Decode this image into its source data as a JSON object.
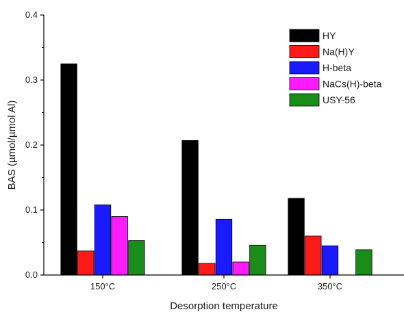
{
  "chart_data": {
    "type": "bar",
    "xlabel": "Desorption temperature",
    "ylabel": "BAS (µmol/µmol Al)",
    "categories": [
      "150°C",
      "250°C",
      "350°C"
    ],
    "ylim": [
      0.0,
      0.4
    ],
    "yticks": [
      "0.0",
      "0.1",
      "0.2",
      "0.3",
      "0.4"
    ],
    "legend_position": "top-right",
    "grid": false,
    "series": [
      {
        "name": "HY",
        "color": "#000000",
        "values": [
          0.325,
          0.207,
          0.118
        ]
      },
      {
        "name": "Na(H)Y",
        "color": "#ff1a1a",
        "values": [
          0.037,
          0.018,
          0.06
        ]
      },
      {
        "name": "H-beta",
        "color": "#1a1aff",
        "values": [
          0.108,
          0.086,
          0.045
        ]
      },
      {
        "name": "NaCs(H)-beta",
        "color": "#ff1aff",
        "values": [
          0.09,
          0.02,
          null
        ]
      },
      {
        "name": "USY-56",
        "color": "#1a8c1a",
        "values": [
          0.053,
          0.046,
          0.039
        ]
      }
    ]
  }
}
